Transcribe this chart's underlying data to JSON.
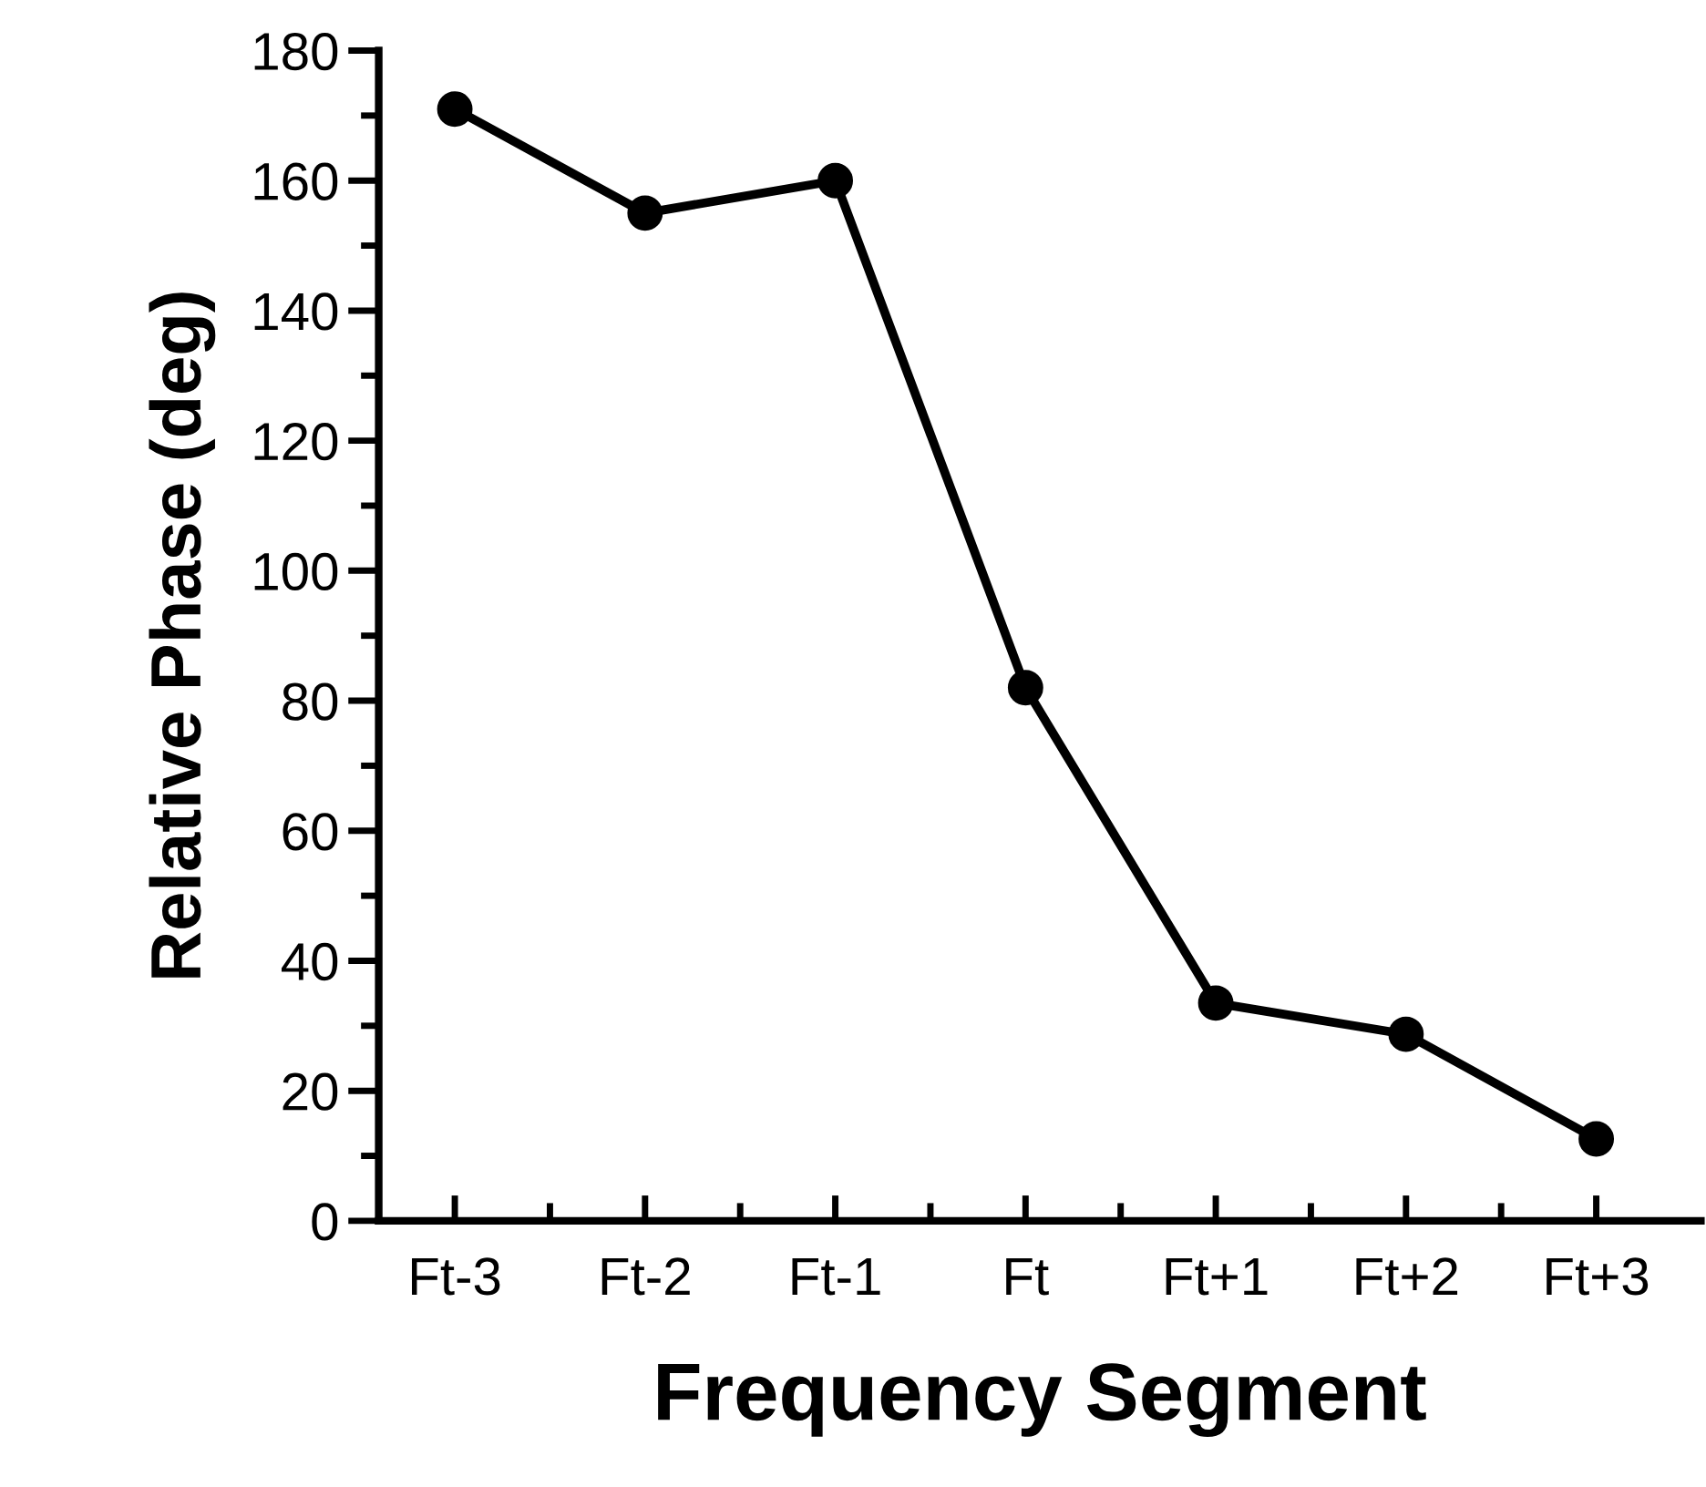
{
  "chart_data": {
    "type": "line",
    "xlabel": "Frequency Segment",
    "ylabel": "Relative Phase (deg)",
    "categories": [
      "Ft-3",
      "Ft-2",
      "Ft-1",
      "Ft",
      "Ft+1",
      "Ft+2",
      "Ft+3"
    ],
    "series": [
      {
        "color": "#000000",
        "values": [
          171,
          155,
          160,
          82,
          33.5,
          28.7,
          12.6
        ]
      }
    ],
    "ylim": [
      0,
      180
    ],
    "yticks": [
      0,
      20,
      40,
      60,
      80,
      100,
      120,
      140,
      160,
      180
    ],
    "marker": "circle",
    "line_style": "solid",
    "grid": false
  }
}
